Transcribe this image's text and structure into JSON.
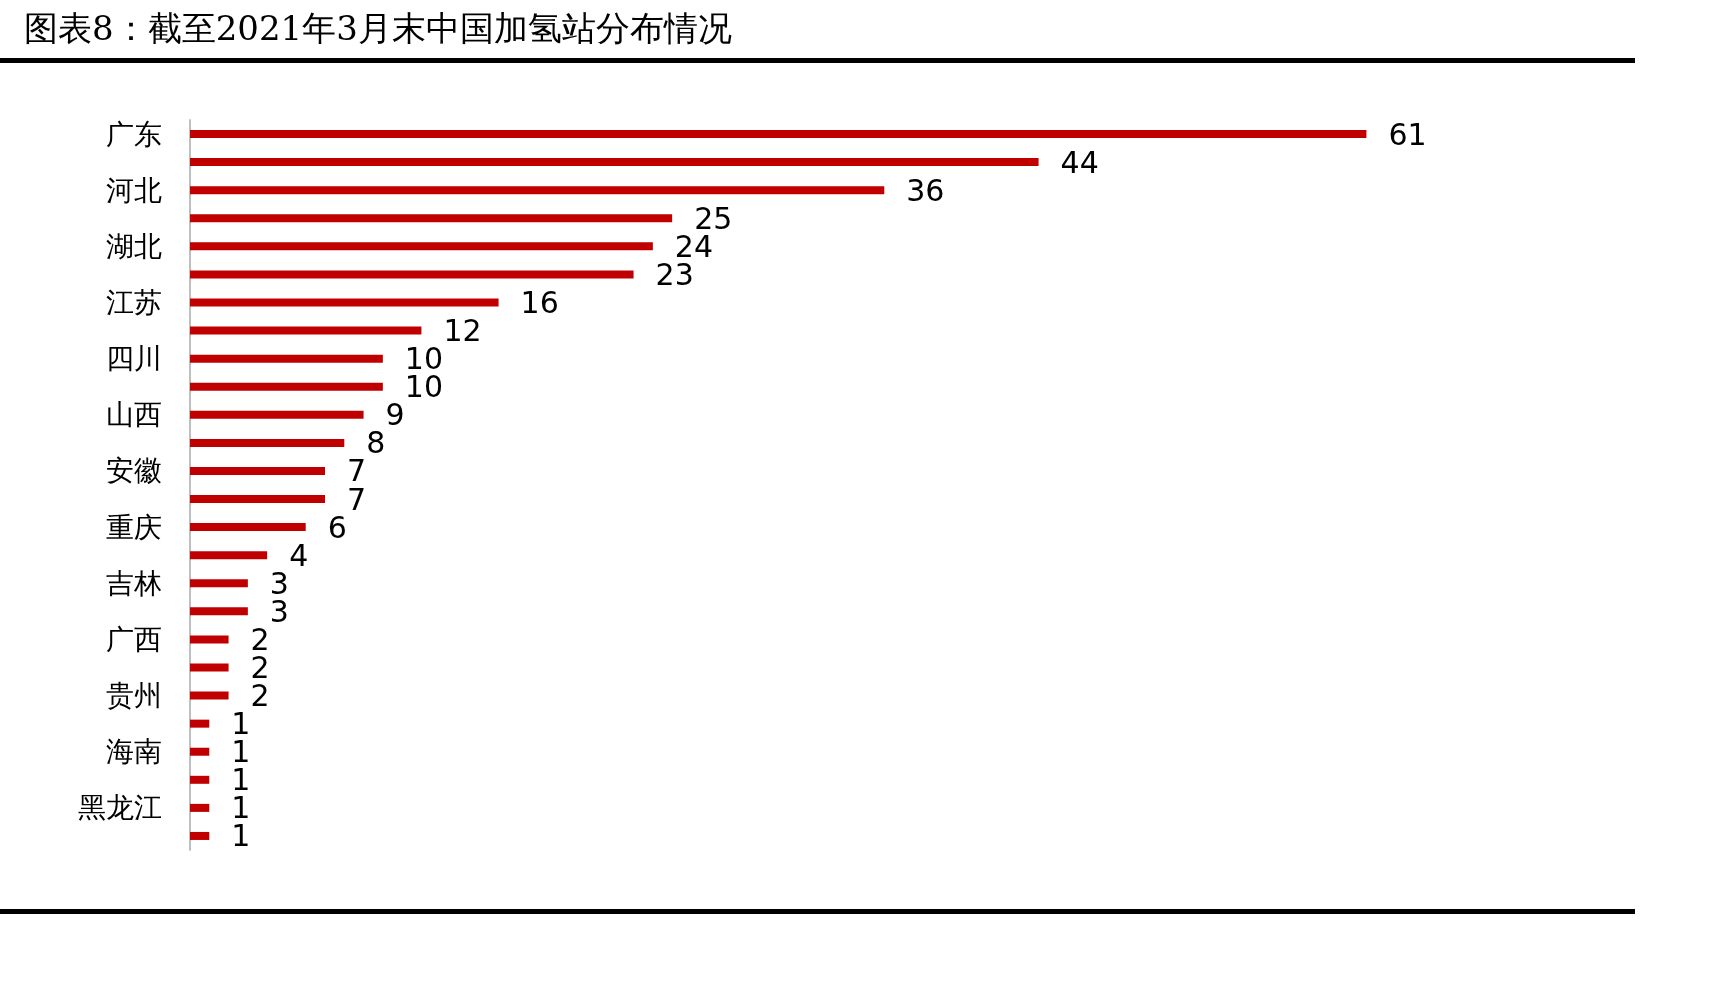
{
  "chart_data": {
    "type": "bar",
    "orientation": "horizontal",
    "title": "图表8：截至2021年3月末中国加氢站分布情况",
    "categories": [
      "广东",
      null,
      "河北",
      null,
      "湖北",
      null,
      "江苏",
      null,
      "四川",
      null,
      "山西",
      null,
      "安徽",
      null,
      "重庆",
      null,
      "吉林",
      null,
      "广西",
      null,
      "贵州",
      null,
      "海南",
      null,
      "黑龙江",
      null
    ],
    "values": [
      61,
      44,
      36,
      25,
      24,
      23,
      16,
      12,
      10,
      10,
      9,
      8,
      7,
      7,
      6,
      4,
      3,
      3,
      2,
      2,
      2,
      1,
      1,
      1,
      1,
      1
    ],
    "color": "#c00000",
    "data_labels": true
  }
}
